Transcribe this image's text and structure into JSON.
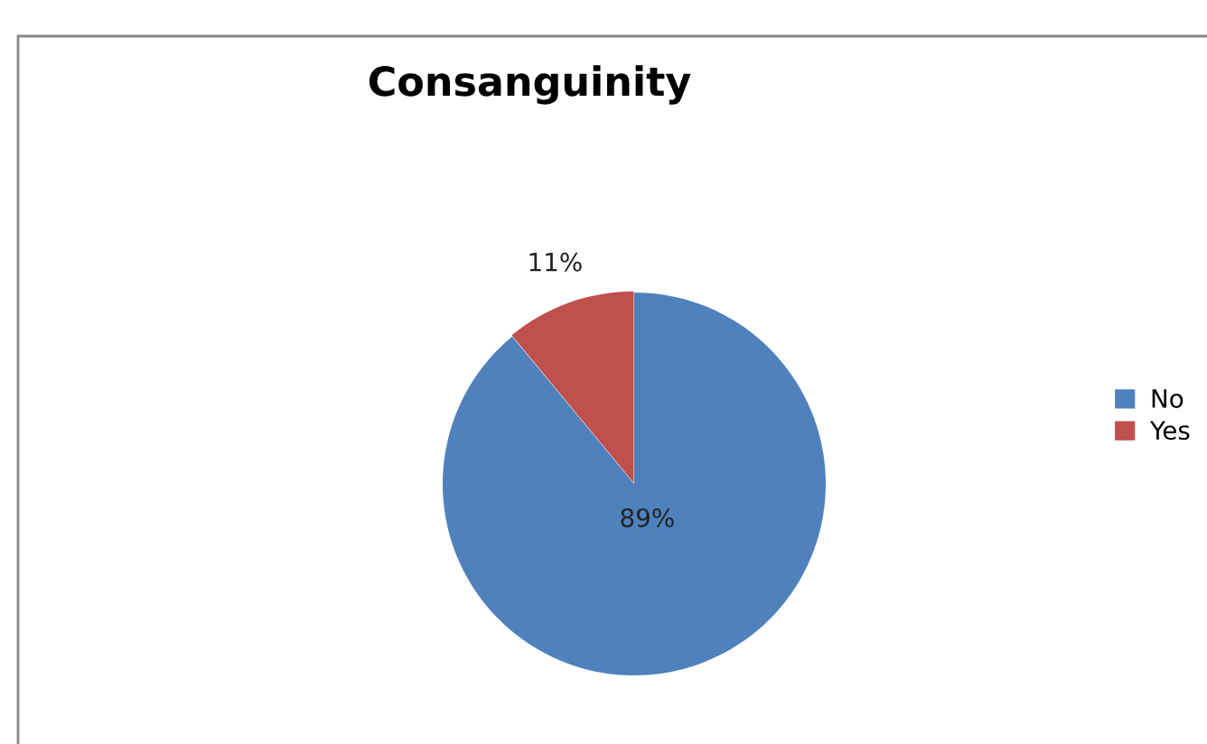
{
  "chart_data": {
    "type": "pie",
    "title": "Consanguinity",
    "categories": [
      "No",
      "Yes"
    ],
    "values": [
      89,
      11
    ],
    "colors": [
      "#4f81bd",
      "#c0504d"
    ],
    "value_labels": [
      "89%",
      "11%"
    ],
    "legend": "right"
  }
}
